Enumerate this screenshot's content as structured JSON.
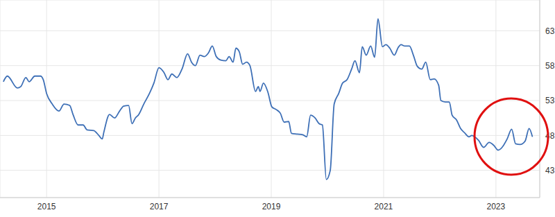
{
  "chart_data": {
    "type": "line",
    "color": "#3d6fb6",
    "grid": true,
    "x": [
      2014.23,
      2014.3,
      2014.48,
      2014.54,
      2014.63,
      2014.69,
      2014.79,
      2014.89,
      2014.94,
      2015.0,
      2015.1,
      2015.22,
      2015.31,
      2015.41,
      2015.47,
      2015.56,
      2015.65,
      2015.72,
      2015.84,
      2015.93,
      2015.99,
      2016.02,
      2016.12,
      2016.21,
      2016.3,
      2016.37,
      2016.46,
      2016.52,
      2016.58,
      2016.64,
      2016.73,
      2016.83,
      2016.91,
      2017.0,
      2017.09,
      2017.16,
      2017.23,
      2017.32,
      2017.41,
      2017.51,
      2017.58,
      2017.65,
      2017.73,
      2017.81,
      2017.88,
      2017.95,
      2018.02,
      2018.1,
      2018.19,
      2018.25,
      2018.32,
      2018.37,
      2018.43,
      2018.49,
      2018.56,
      2018.62,
      2018.72,
      2018.77,
      2018.8,
      2018.86,
      2018.94,
      2019.01,
      2019.09,
      2019.16,
      2019.23,
      2019.31,
      2019.36,
      2019.46,
      2019.56,
      2019.63,
      2019.7,
      2019.78,
      2019.85,
      2019.91,
      2019.98,
      2020.05,
      2020.12,
      2020.2,
      2020.27,
      2020.35,
      2020.43,
      2020.49,
      2020.57,
      2020.62,
      2020.69,
      2020.77,
      2020.84,
      2020.9,
      2020.98,
      2021.04,
      2021.11,
      2021.19,
      2021.26,
      2021.31,
      2021.38,
      2021.46,
      2021.53,
      2021.6,
      2021.68,
      2021.75,
      2021.83,
      2021.9,
      2021.98,
      2022.02,
      2022.1,
      2022.17,
      2022.22,
      2022.3,
      2022.37,
      2022.44,
      2022.52,
      2022.57,
      2022.69,
      2022.78,
      2022.88,
      2022.96,
      2023.04,
      2023.11,
      2023.2,
      2023.28,
      2023.35,
      2023.43,
      2023.52,
      2023.59,
      2023.65
    ],
    "values": [
      55.7,
      56.5,
      54.8,
      55.0,
      56.3,
      55.7,
      56.5,
      56.5,
      56.0,
      54.0,
      52.5,
      51.5,
      52.5,
      52.3,
      51.0,
      49.5,
      49.5,
      48.8,
      48.7,
      48.0,
      47.5,
      48.5,
      51.0,
      50.5,
      51.5,
      52.2,
      52.3,
      49.7,
      50.5,
      51.0,
      52.5,
      54.0,
      55.5,
      57.7,
      57.0,
      56.0,
      56.8,
      56.3,
      57.5,
      59.7,
      58.5,
      58.0,
      59.5,
      59.3,
      59.8,
      60.8,
      59.3,
      58.8,
      58.7,
      59.3,
      58.5,
      60.5,
      60.0,
      58.2,
      58.5,
      58.0,
      54.3,
      55.0,
      54.3,
      55.5,
      54.2,
      52.1,
      51.7,
      51.2,
      49.9,
      50.0,
      48.3,
      48.2,
      48.1,
      47.8,
      50.9,
      50.5,
      49.7,
      49.5,
      41.7,
      43.0,
      52.5,
      54.0,
      55.5,
      56.0,
      57.5,
      58.7,
      57.0,
      60.7,
      59.5,
      60.8,
      59.2,
      64.7,
      60.7,
      61.0,
      60.5,
      59.5,
      60.6,
      61.0,
      60.8,
      60.8,
      59.5,
      57.9,
      57.5,
      58.5,
      56.0,
      56.1,
      55.2,
      53.0,
      52.8,
      52.8,
      50.9,
      50.2,
      49.0,
      48.4,
      47.8,
      48.0,
      47.3,
      46.3,
      47.0,
      46.6,
      45.9,
      46.3,
      47.5,
      48.9,
      46.8,
      46.7,
      47.2,
      49.0,
      47.8
    ],
    "xlim": [
      2014.17,
      2023.78
    ],
    "xticks": [
      2015,
      2017,
      2019,
      2021,
      2023
    ],
    "ylim": [
      39.1,
      67.4
    ],
    "yticks": [
      43,
      48,
      53,
      58,
      63
    ]
  }
}
